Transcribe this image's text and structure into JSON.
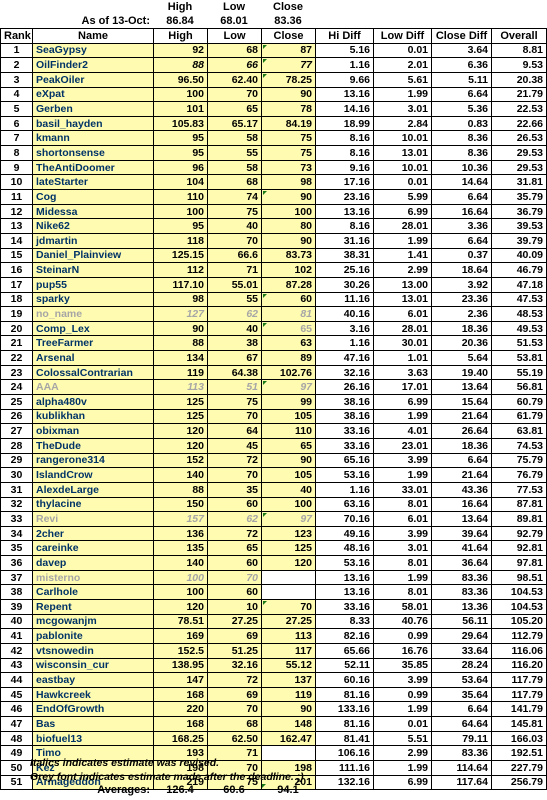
{
  "header": {
    "col_high": "High",
    "col_low": "Low",
    "col_close": "Close",
    "as_of_label": "As of 13-Oct:",
    "as_of_high": "86.84",
    "as_of_low": "68.01",
    "as_of_close": "83.36"
  },
  "columns": [
    "Rank",
    "Name",
    "High",
    "Low",
    "Close",
    "Hi Diff",
    "Low Diff",
    "Close Diff",
    "Overall"
  ],
  "rows": [
    {
      "rank": "1",
      "name": "SeaGypsy",
      "high": "92",
      "low": "68",
      "close": "87",
      "hi_diff": "5.16",
      "low_diff": "0.01",
      "close_diff": "3.64",
      "overall": "8.81",
      "style": "normal"
    },
    {
      "rank": "2",
      "name": "OilFinder2",
      "high": "88",
      "low": "66",
      "close": "77",
      "hi_diff": "1.16",
      "low_diff": "2.01",
      "close_diff": "6.36",
      "overall": "9.53",
      "style": "italic"
    },
    {
      "rank": "3",
      "name": "PeakOiler",
      "high": "96.50",
      "low": "62.40",
      "close": "78.25",
      "hi_diff": "9.66",
      "low_diff": "5.61",
      "close_diff": "5.11",
      "overall": "20.38",
      "style": "normal"
    },
    {
      "rank": "4",
      "name": "eXpat",
      "high": "100",
      "low": "70",
      "close": "90",
      "hi_diff": "13.16",
      "low_diff": "1.99",
      "close_diff": "6.64",
      "overall": "21.79",
      "style": "normal"
    },
    {
      "rank": "5",
      "name": "Gerben",
      "high": "101",
      "low": "65",
      "close": "78",
      "hi_diff": "14.16",
      "low_diff": "3.01",
      "close_diff": "5.36",
      "overall": "22.53",
      "style": "normal"
    },
    {
      "rank": "6",
      "name": "basil_hayden",
      "high": "105.83",
      "low": "65.17",
      "close": "84.19",
      "hi_diff": "18.99",
      "low_diff": "2.84",
      "close_diff": "0.83",
      "overall": "22.66",
      "style": "normal"
    },
    {
      "rank": "7",
      "name": "kmann",
      "high": "95",
      "low": "58",
      "close": "75",
      "hi_diff": "8.16",
      "low_diff": "10.01",
      "close_diff": "8.36",
      "overall": "26.53",
      "style": "normal"
    },
    {
      "rank": "8",
      "name": "shortonsense",
      "high": "95",
      "low": "55",
      "close": "75",
      "hi_diff": "8.16",
      "low_diff": "13.01",
      "close_diff": "8.36",
      "overall": "29.53",
      "style": "normal"
    },
    {
      "rank": "9",
      "name": "TheAntiDoomer",
      "high": "96",
      "low": "58",
      "close": "73",
      "hi_diff": "9.16",
      "low_diff": "10.01",
      "close_diff": "10.36",
      "overall": "29.53",
      "style": "normal"
    },
    {
      "rank": "10",
      "name": "lateStarter",
      "high": "104",
      "low": "68",
      "close": "98",
      "hi_diff": "17.16",
      "low_diff": "0.01",
      "close_diff": "14.64",
      "overall": "31.81",
      "style": "normal"
    },
    {
      "rank": "11",
      "name": "Cog",
      "high": "110",
      "low": "74",
      "close": "90",
      "hi_diff": "23.16",
      "low_diff": "5.99",
      "close_diff": "6.64",
      "overall": "35.79",
      "style": "normal"
    },
    {
      "rank": "12",
      "name": "Midessa",
      "high": "100",
      "low": "75",
      "close": "100",
      "hi_diff": "13.16",
      "low_diff": "6.99",
      "close_diff": "16.64",
      "overall": "36.79",
      "style": "normal"
    },
    {
      "rank": "13",
      "name": "Nike62",
      "high": "95",
      "low": "40",
      "close": "80",
      "hi_diff": "8.16",
      "low_diff": "28.01",
      "close_diff": "3.36",
      "overall": "39.53",
      "style": "normal"
    },
    {
      "rank": "14",
      "name": "jdmartin",
      "high": "118",
      "low": "70",
      "close": "90",
      "hi_diff": "31.16",
      "low_diff": "1.99",
      "close_diff": "6.64",
      "overall": "39.79",
      "style": "normal"
    },
    {
      "rank": "15",
      "name": "Daniel_Plainview",
      "high": "125.15",
      "low": "66.6",
      "close": "83.73",
      "hi_diff": "38.31",
      "low_diff": "1.41",
      "close_diff": "0.37",
      "overall": "40.09",
      "style": "normal"
    },
    {
      "rank": "16",
      "name": "SteinarN",
      "high": "112",
      "low": "71",
      "close": "102",
      "hi_diff": "25.16",
      "low_diff": "2.99",
      "close_diff": "18.64",
      "overall": "46.79",
      "style": "normal"
    },
    {
      "rank": "17",
      "name": "pup55",
      "high": "117.10",
      "low": "55.01",
      "close": "87.28",
      "hi_diff": "30.26",
      "low_diff": "13.00",
      "close_diff": "3.92",
      "overall": "47.18",
      "style": "normal"
    },
    {
      "rank": "18",
      "name": "sparky",
      "high": "98",
      "low": "55",
      "close": "60",
      "hi_diff": "11.16",
      "low_diff": "13.01",
      "close_diff": "23.36",
      "overall": "47.53",
      "style": "normal"
    },
    {
      "rank": "19",
      "name": "no_name",
      "high": "127",
      "low": "62",
      "close": "81",
      "hi_diff": "40.16",
      "low_diff": "6.01",
      "close_diff": "2.36",
      "overall": "48.53",
      "style": "grey"
    },
    {
      "rank": "20",
      "name": "Comp_Lex",
      "high": "90",
      "low": "40",
      "close": "65",
      "hi_diff": "3.16",
      "low_diff": "28.01",
      "close_diff": "18.36",
      "overall": "49.53",
      "style": "normal",
      "grey_close": true
    },
    {
      "rank": "21",
      "name": "TreeFarmer",
      "high": "88",
      "low": "38",
      "close": "63",
      "hi_diff": "1.16",
      "low_diff": "30.01",
      "close_diff": "20.36",
      "overall": "51.53",
      "style": "normal"
    },
    {
      "rank": "22",
      "name": "Arsenal",
      "high": "134",
      "low": "67",
      "close": "89",
      "hi_diff": "47.16",
      "low_diff": "1.01",
      "close_diff": "5.64",
      "overall": "53.81",
      "style": "normal"
    },
    {
      "rank": "23",
      "name": "ColossalContrarian",
      "high": "119",
      "low": "64.38",
      "close": "102.76",
      "hi_diff": "32.16",
      "low_diff": "3.63",
      "close_diff": "19.40",
      "overall": "55.19",
      "style": "normal"
    },
    {
      "rank": "24",
      "name": "AAA",
      "high": "113",
      "low": "51",
      "close": "97",
      "hi_diff": "26.16",
      "low_diff": "17.01",
      "close_diff": "13.64",
      "overall": "56.81",
      "style": "grey"
    },
    {
      "rank": "25",
      "name": "alpha480v",
      "high": "125",
      "low": "75",
      "close": "99",
      "hi_diff": "38.16",
      "low_diff": "6.99",
      "close_diff": "15.64",
      "overall": "60.79",
      "style": "normal"
    },
    {
      "rank": "26",
      "name": "kublikhan",
      "high": "125",
      "low": "70",
      "close": "105",
      "hi_diff": "38.16",
      "low_diff": "1.99",
      "close_diff": "21.64",
      "overall": "61.79",
      "style": "normal"
    },
    {
      "rank": "27",
      "name": "obixman",
      "high": "120",
      "low": "64",
      "close": "110",
      "hi_diff": "33.16",
      "low_diff": "4.01",
      "close_diff": "26.64",
      "overall": "63.81",
      "style": "normal"
    },
    {
      "rank": "28",
      "name": "TheDude",
      "high": "120",
      "low": "45",
      "close": "65",
      "hi_diff": "33.16",
      "low_diff": "23.01",
      "close_diff": "18.36",
      "overall": "74.53",
      "style": "normal"
    },
    {
      "rank": "29",
      "name": "rangerone314",
      "high": "152",
      "low": "72",
      "close": "90",
      "hi_diff": "65.16",
      "low_diff": "3.99",
      "close_diff": "6.64",
      "overall": "75.79",
      "style": "normal"
    },
    {
      "rank": "30",
      "name": "IslandCrow",
      "high": "140",
      "low": "70",
      "close": "105",
      "hi_diff": "53.16",
      "low_diff": "1.99",
      "close_diff": "21.64",
      "overall": "76.79",
      "style": "normal"
    },
    {
      "rank": "31",
      "name": "AlexdeLarge",
      "high": "88",
      "low": "35",
      "close": "40",
      "hi_diff": "1.16",
      "low_diff": "33.01",
      "close_diff": "43.36",
      "overall": "77.53",
      "style": "normal"
    },
    {
      "rank": "32",
      "name": "thylacine",
      "high": "150",
      "low": "60",
      "close": "100",
      "hi_diff": "63.16",
      "low_diff": "8.01",
      "close_diff": "16.64",
      "overall": "87.81",
      "style": "normal"
    },
    {
      "rank": "33",
      "name": "Revi",
      "high": "157",
      "low": "62",
      "close": "97",
      "hi_diff": "70.16",
      "low_diff": "6.01",
      "close_diff": "13.64",
      "overall": "89.81",
      "style": "grey"
    },
    {
      "rank": "34",
      "name": "2cher",
      "high": "136",
      "low": "72",
      "close": "123",
      "hi_diff": "49.16",
      "low_diff": "3.99",
      "close_diff": "39.64",
      "overall": "92.79",
      "style": "normal"
    },
    {
      "rank": "35",
      "name": "careinke",
      "high": "135",
      "low": "65",
      "close": "125",
      "hi_diff": "48.16",
      "low_diff": "3.01",
      "close_diff": "41.64",
      "overall": "92.81",
      "style": "normal"
    },
    {
      "rank": "36",
      "name": "davep",
      "high": "140",
      "low": "60",
      "close": "120",
      "hi_diff": "53.16",
      "low_diff": "8.01",
      "close_diff": "36.64",
      "overall": "97.81",
      "style": "normal"
    },
    {
      "rank": "37",
      "name": "misterno",
      "high": "100",
      "low": "70",
      "close": "",
      "hi_diff": "13.16",
      "low_diff": "1.99",
      "close_diff": "83.36",
      "overall": "98.51",
      "style": "grey"
    },
    {
      "rank": "38",
      "name": "Carlhole",
      "high": "100",
      "low": "60",
      "close": "",
      "hi_diff": "13.16",
      "low_diff": "8.01",
      "close_diff": "83.36",
      "overall": "104.53",
      "style": "normal"
    },
    {
      "rank": "39",
      "name": "Repent",
      "high": "120",
      "low": "10",
      "close": "70",
      "hi_diff": "33.16",
      "low_diff": "58.01",
      "close_diff": "13.36",
      "overall": "104.53",
      "style": "normal"
    },
    {
      "rank": "40",
      "name": "mcgowanjm",
      "high": "78.51",
      "low": "27.25",
      "close": "27.25",
      "hi_diff": "8.33",
      "low_diff": "40.76",
      "close_diff": "56.11",
      "overall": "105.20",
      "style": "normal"
    },
    {
      "rank": "41",
      "name": "pablonite",
      "high": "169",
      "low": "69",
      "close": "113",
      "hi_diff": "82.16",
      "low_diff": "0.99",
      "close_diff": "29.64",
      "overall": "112.79",
      "style": "normal"
    },
    {
      "rank": "42",
      "name": "vtsnowedin",
      "high": "152.5",
      "low": "51.25",
      "close": "117",
      "hi_diff": "65.66",
      "low_diff": "16.76",
      "close_diff": "33.64",
      "overall": "116.06",
      "style": "normal"
    },
    {
      "rank": "43",
      "name": "wisconsin_cur",
      "high": "138.95",
      "low": "32.16",
      "close": "55.12",
      "hi_diff": "52.11",
      "low_diff": "35.85",
      "close_diff": "28.24",
      "overall": "116.20",
      "style": "normal"
    },
    {
      "rank": "44",
      "name": "eastbay",
      "high": "147",
      "low": "72",
      "close": "137",
      "hi_diff": "60.16",
      "low_diff": "3.99",
      "close_diff": "53.64",
      "overall": "117.79",
      "style": "normal"
    },
    {
      "rank": "45",
      "name": "Hawkcreek",
      "high": "168",
      "low": "69",
      "close": "119",
      "hi_diff": "81.16",
      "low_diff": "0.99",
      "close_diff": "35.64",
      "overall": "117.79",
      "style": "normal"
    },
    {
      "rank": "46",
      "name": "EndOfGrowth",
      "high": "220",
      "low": "70",
      "close": "90",
      "hi_diff": "133.16",
      "low_diff": "1.99",
      "close_diff": "6.64",
      "overall": "141.79",
      "style": "normal"
    },
    {
      "rank": "47",
      "name": "Bas",
      "high": "168",
      "low": "68",
      "close": "148",
      "hi_diff": "81.16",
      "low_diff": "0.01",
      "close_diff": "64.64",
      "overall": "145.81",
      "style": "normal"
    },
    {
      "rank": "48",
      "name": "biofuel13",
      "high": "168.25",
      "low": "62.50",
      "close": "162.47",
      "hi_diff": "81.41",
      "low_diff": "5.51",
      "close_diff": "79.11",
      "overall": "166.03",
      "style": "normal"
    },
    {
      "rank": "49",
      "name": "Timo",
      "high": "193",
      "low": "71",
      "close": "",
      "hi_diff": "106.16",
      "low_diff": "2.99",
      "close_diff": "83.36",
      "overall": "192.51",
      "style": "normal"
    },
    {
      "rank": "50",
      "name": "Kez",
      "high": "198",
      "low": "70",
      "close": "198",
      "hi_diff": "111.16",
      "low_diff": "1.99",
      "close_diff": "114.64",
      "overall": "227.79",
      "style": "normal"
    },
    {
      "rank": "51",
      "name": "Armageddon",
      "high": "219",
      "low": "75",
      "close": "201",
      "hi_diff": "132.16",
      "low_diff": "6.99",
      "close_diff": "117.64",
      "overall": "256.79",
      "style": "normal"
    }
  ],
  "notes": {
    "italic_note": "Italics indicates estimate was revised.",
    "grey_note": "Grey font indicates estimate made after the deadline. ;)"
  },
  "averages": {
    "label": "Averages:",
    "high": "126.4",
    "low": "60.6",
    "close": "94.1"
  }
}
